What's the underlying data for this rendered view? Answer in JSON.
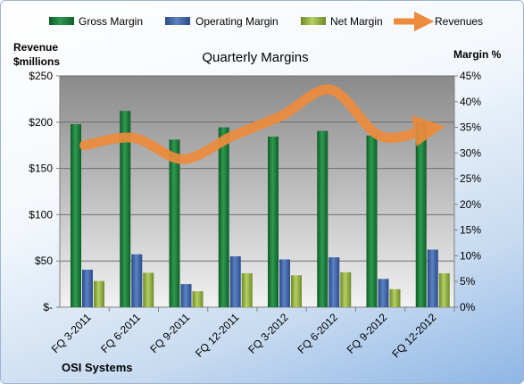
{
  "chart_data": {
    "type": "bar",
    "title": "Quarterly Margins",
    "company": "OSI Systems",
    "y_left_label": [
      "Revenue",
      "$millions"
    ],
    "y_right_label": "Margin %",
    "categories": [
      "FQ 3-2011",
      "FQ 6-2011",
      "FQ 9-2011",
      "FQ 12-2011",
      "FQ 3-2012",
      "FQ 6-2012",
      "FQ 9-2012",
      "FQ 12-2012"
    ],
    "left_axis": {
      "min": 0,
      "max": 250,
      "ticks": [
        0,
        50,
        100,
        150,
        200,
        250
      ],
      "tick_labels": [
        "$-",
        "$50",
        "$100",
        "$150",
        "$200",
        "$250"
      ]
    },
    "right_axis": {
      "min": 0,
      "max": 45,
      "ticks": [
        0,
        5,
        10,
        15,
        20,
        25,
        30,
        35,
        40,
        45
      ],
      "tick_labels": [
        "0%",
        "5%",
        "10%",
        "15%",
        "20%",
        "25%",
        "30%",
        "35%",
        "40%",
        "45%"
      ]
    },
    "series": [
      {
        "name": "Gross Margin",
        "axis": "right",
        "color": "#1e7a3c",
        "values": [
          35.6,
          38.2,
          32.6,
          35.0,
          33.2,
          34.3,
          33.4,
          36.1
        ]
      },
      {
        "name": "Operating Margin",
        "axis": "right",
        "color": "#3d63a6",
        "values": [
          7.3,
          10.3,
          4.5,
          9.9,
          9.3,
          9.7,
          5.5,
          11.2
        ]
      },
      {
        "name": "Net Margin",
        "axis": "right",
        "color": "#8fae3e",
        "values": [
          5.1,
          6.7,
          3.1,
          6.6,
          6.2,
          6.8,
          3.5,
          6.6
        ]
      },
      {
        "name": "Revenues",
        "axis": "left",
        "type": "line",
        "color": "#ed8b3c",
        "values": [
          175,
          183,
          160,
          185,
          207,
          235,
          185,
          193
        ]
      }
    ],
    "grid": true,
    "legend": "top"
  }
}
